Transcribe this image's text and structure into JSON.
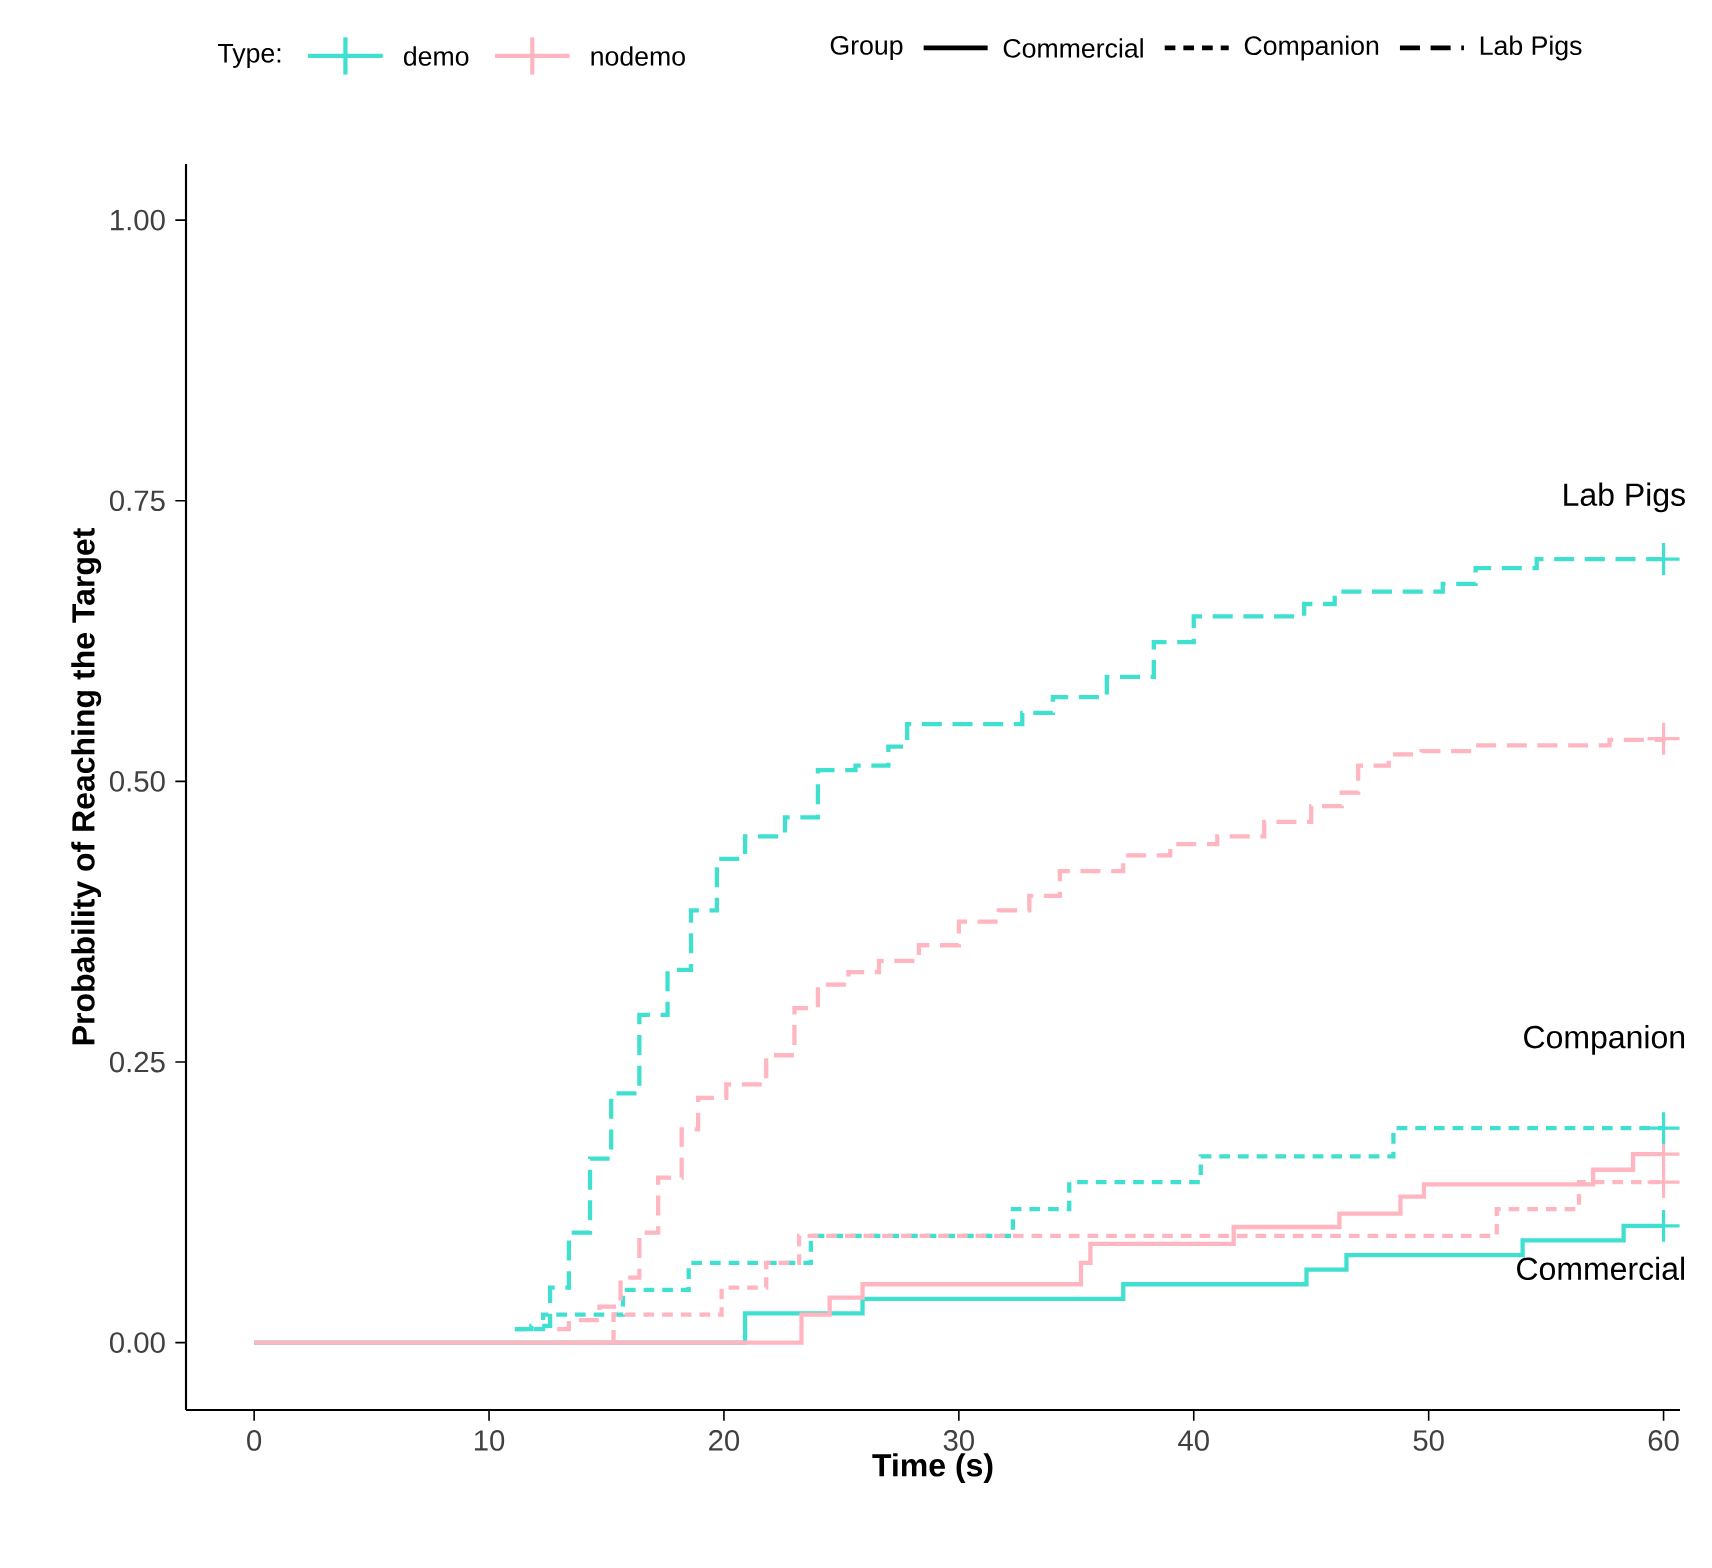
{
  "chart_data": {
    "type": "step",
    "xlabel": "Time (s)",
    "ylabel": "Probability of Reaching the Target",
    "legend_title": "Type:",
    "legend": "top",
    "grid": false,
    "xlim": [
      -2.9,
      60.7
    ],
    "ylim": [
      -0.06,
      1.05
    ],
    "xticks": [
      0,
      10,
      20,
      30,
      40,
      50,
      60
    ],
    "yticks": [
      {
        "value": 0,
        "label": "0.00"
      },
      {
        "value": 0.25,
        "label": "0.25"
      },
      {
        "value": 0.5,
        "label": "0.50"
      },
      {
        "value": 0.75,
        "label": "0.75"
      },
      {
        "value": 1,
        "label": "1.00"
      }
    ],
    "series": [
      {
        "name": "demo",
        "color": "#40e0d0",
        "line_style": "solid",
        "x": [
          0,
          20.9,
          25.9,
          37.0,
          44.8,
          46.5,
          54.0,
          58.3,
          60
        ],
        "values": [
          0,
          0.026,
          0.039,
          0.052,
          0.065,
          0.078,
          0.091,
          0.104,
          0.104
        ]
      },
      {
        "name": "nodemo",
        "color": "#ffb6c1",
        "line_style": "solid",
        "x": [
          0,
          23.3,
          24.5,
          25.9,
          35.2,
          35.6,
          41.7,
          46.2,
          48.8,
          49.8,
          57.0,
          58.7,
          60
        ],
        "values": [
          0,
          0.025,
          0.04,
          0.052,
          0.071,
          0.088,
          0.103,
          0.115,
          0.13,
          0.141,
          0.154,
          0.168,
          0.168
        ]
      },
      {
        "color": "#40e0d0",
        "line_style": "dotted",
        "x": [
          11.1,
          12.3,
          15.7,
          18.5,
          23.7,
          32.3,
          34.7,
          40.3,
          48.5,
          60
        ],
        "values": [
          0.012,
          0.025,
          0.047,
          0.071,
          0.095,
          0.119,
          0.143,
          0.166,
          0.191,
          0.191
        ]
      },
      {
        "color": "#ffb6c1",
        "line_style": "dotted",
        "x": [
          13.0,
          15.3,
          19.9,
          21.8,
          23.2,
          52.9,
          56.4,
          60
        ],
        "values": [
          0,
          0.025,
          0.049,
          0.071,
          0.095,
          0.119,
          0.143,
          0.143
        ]
      },
      {
        "color": "#40e0d0",
        "line_style": "dashed",
        "x": [
          11.1,
          11.8,
          12.6,
          13.4,
          14.3,
          15.2,
          16.4,
          17.6,
          18.6,
          19.7,
          20.9,
          22.6,
          24.0,
          25.6,
          27.0,
          27.8,
          32.7,
          34.0,
          36.3,
          38.3,
          40.0,
          44.7,
          46.0,
          50.6,
          52.0,
          54.6,
          60
        ],
        "values": [
          0.012,
          0.015,
          0.049,
          0.098,
          0.164,
          0.222,
          0.292,
          0.332,
          0.385,
          0.431,
          0.451,
          0.468,
          0.51,
          0.514,
          0.531,
          0.551,
          0.561,
          0.575,
          0.593,
          0.624,
          0.647,
          0.658,
          0.669,
          0.676,
          0.69,
          0.698,
          0.698
        ]
      },
      {
        "color": "#ffb6c1",
        "line_style": "dashed",
        "x": [
          12.9,
          13.4,
          14.7,
          15.6,
          16.4,
          17.2,
          18.2,
          18.9,
          20.1,
          21.8,
          23.0,
          24.0,
          25.3,
          26.6,
          28.3,
          30.0,
          31.7,
          33.0,
          34.3,
          37.0,
          39.0,
          41.0,
          43.0,
          45.0,
          46.3,
          47.0,
          48.3,
          49.7,
          52.0,
          57.7,
          60
        ],
        "values": [
          0.012,
          0.02,
          0.032,
          0.058,
          0.098,
          0.147,
          0.19,
          0.218,
          0.23,
          0.256,
          0.298,
          0.319,
          0.33,
          0.34,
          0.354,
          0.375,
          0.385,
          0.398,
          0.42,
          0.434,
          0.444,
          0.451,
          0.464,
          0.478,
          0.49,
          0.514,
          0.524,
          0.527,
          0.532,
          0.537,
          0.538
        ]
      },
      {
        "type": "scatter",
        "marker": "cross",
        "color": "#40e0d0",
        "x": [
          60
        ],
        "values": [
          0.104
        ]
      },
      {
        "type": "scatter",
        "marker": "cross",
        "color": "#ffb6c1",
        "x": [
          60
        ],
        "values": [
          0.168
        ]
      },
      {
        "type": "scatter",
        "marker": "cross",
        "color": "#40e0d0",
        "x": [
          60
        ],
        "values": [
          0.191
        ]
      },
      {
        "type": "scatter",
        "marker": "cross",
        "color": "#ffb6c1",
        "x": [
          60
        ],
        "values": [
          0.143
        ]
      },
      {
        "type": "scatter",
        "marker": "cross",
        "color": "#40e0d0",
        "x": [
          60
        ],
        "values": [
          0.698
        ]
      },
      {
        "type": "scatter",
        "marker": "cross",
        "color": "#ffb6c1",
        "x": [
          60
        ],
        "values": [
          0.538
        ]
      }
    ],
    "annotations": [
      "Group",
      "Commercial",
      "Companion",
      "Lab Pigs",
      "Commercial",
      "Companion",
      "Lab Pigs"
    ]
  }
}
